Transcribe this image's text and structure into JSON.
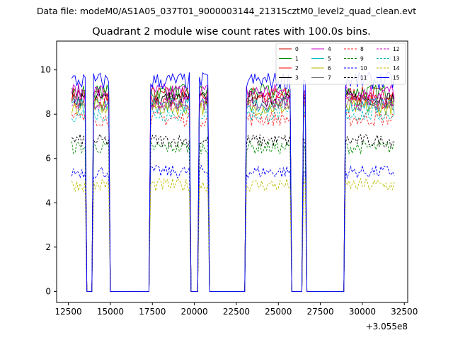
{
  "chart_data": {
    "type": "line",
    "suptitle": "Data file: modeM0/AS1A05_037T01_9000003144_21315cztM0_level2_quad_clean.evt",
    "title": "Quadrant 2 module wise count rates with 100.0s bins.",
    "xlabel": "",
    "ylabel": "",
    "x_offset_label": "+3.055e8",
    "xlim": [
      11800,
      32700
    ],
    "ylim": [
      -0.5,
      11.3
    ],
    "xticks": [
      12500,
      15000,
      17500,
      20000,
      22500,
      25000,
      27500,
      30000,
      32500
    ],
    "xtick_labels": [
      "12500",
      "15000",
      "17500",
      "20000",
      "22500",
      "25000",
      "27500",
      "30000",
      "32500"
    ],
    "yticks": [
      0,
      2,
      4,
      6,
      8,
      10
    ],
    "ytick_labels": [
      "0",
      "2",
      "4",
      "6",
      "8",
      "10"
    ],
    "legend_position": "top-right",
    "series": [
      {
        "name": "0",
        "color": "#cc0000",
        "dash": "solid",
        "level": 8.9,
        "amp": 0.35
      },
      {
        "name": "1",
        "color": "#008800",
        "dash": "solid",
        "level": 9.0,
        "amp": 0.35
      },
      {
        "name": "2",
        "color": "#ff0000",
        "dash": "solid",
        "level": 8.6,
        "amp": 0.35
      },
      {
        "name": "3",
        "color": "#000000",
        "dash": "solid",
        "level": 8.7,
        "amp": 0.35
      },
      {
        "name": "4",
        "color": "#cc00cc",
        "dash": "solid",
        "level": 9.0,
        "amp": 0.4
      },
      {
        "name": "5",
        "color": "#00bbbb",
        "dash": "solid",
        "level": 8.4,
        "amp": 0.35
      },
      {
        "name": "6",
        "color": "#bbbb00",
        "dash": "solid",
        "level": 8.3,
        "amp": 0.35
      },
      {
        "name": "7",
        "color": "#777777",
        "dash": "solid",
        "level": 8.5,
        "amp": 0.35
      },
      {
        "name": "8",
        "color": "#ff2222",
        "dash": "dashed",
        "level": 7.8,
        "amp": 0.35
      },
      {
        "name": "9",
        "color": "#008800",
        "dash": "dashed",
        "level": 6.5,
        "amp": 0.3
      },
      {
        "name": "10",
        "color": "#0000ff",
        "dash": "dashed",
        "level": 5.4,
        "amp": 0.3
      },
      {
        "name": "11",
        "color": "#000000",
        "dash": "dashed",
        "level": 6.8,
        "amp": 0.3
      },
      {
        "name": "12",
        "color": "#cc00cc",
        "dash": "dashed",
        "level": 8.5,
        "amp": 0.35
      },
      {
        "name": "13",
        "color": "#00bbbb",
        "dash": "dashed",
        "level": 8.0,
        "amp": 0.35
      },
      {
        "name": "14",
        "color": "#bbbb00",
        "dash": "dashed",
        "level": 4.8,
        "amp": 0.3
      },
      {
        "name": "15",
        "color": "#0000ff",
        "dash": "solid",
        "level": 9.5,
        "amp": 0.4
      }
    ],
    "on_intervals": [
      [
        12700,
        13550
      ],
      [
        13950,
        14950
      ],
      [
        17350,
        19700
      ],
      [
        20250,
        20800
      ],
      [
        23100,
        25750
      ],
      [
        26500,
        26650
      ],
      [
        28950,
        31950
      ]
    ],
    "bin_width": 100
  }
}
